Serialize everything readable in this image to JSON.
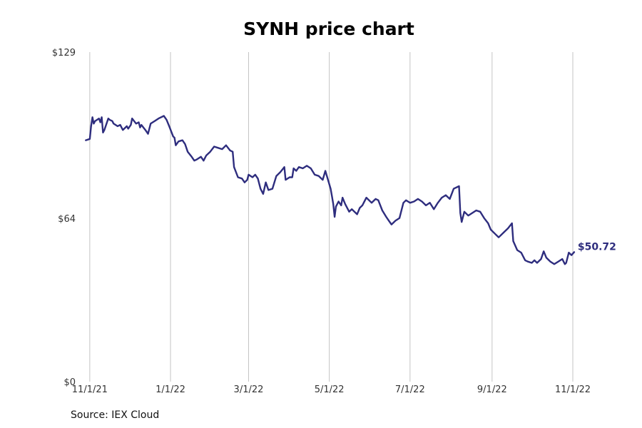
{
  "chart_data": {
    "type": "line",
    "title": "SYNH price chart",
    "xlabel": "",
    "ylabel": "",
    "ylim": [
      0,
      129
    ],
    "xlim": [
      "2021-10-31",
      "2022-11-01"
    ],
    "yticks": [
      {
        "value": 0,
        "label": "$0"
      },
      {
        "value": 64,
        "label": "$64"
      },
      {
        "value": 129,
        "label": "$129"
      }
    ],
    "xticks": [
      {
        "date": "2021-11-01",
        "label": "11/1/21"
      },
      {
        "date": "2022-01-01",
        "label": "1/1/22"
      },
      {
        "date": "2022-03-01",
        "label": "3/1/22"
      },
      {
        "date": "2022-05-01",
        "label": "5/1/22"
      },
      {
        "date": "2022-07-01",
        "label": "7/1/22"
      },
      {
        "date": "2022-09-01",
        "label": "9/1/22"
      },
      {
        "date": "2022-11-01",
        "label": "11/1/22"
      }
    ],
    "grid": {
      "vertical": true,
      "horizontal": false
    },
    "series": [
      {
        "color": "#2e2d7e",
        "end_label": "$50.72",
        "points": [
          [
            "2021-10-29",
            94.5
          ],
          [
            "2021-11-01",
            95.0
          ],
          [
            "2021-11-02",
            100.0
          ],
          [
            "2021-11-03",
            103.5
          ],
          [
            "2021-11-04",
            101.0
          ],
          [
            "2021-11-05",
            102.0
          ],
          [
            "2021-11-08",
            103.0
          ],
          [
            "2021-11-09",
            101.5
          ],
          [
            "2021-11-10",
            103.5
          ],
          [
            "2021-11-11",
            97.5
          ],
          [
            "2021-11-12",
            98.5
          ],
          [
            "2021-11-15",
            103.0
          ],
          [
            "2021-11-16",
            102.5
          ],
          [
            "2021-11-18",
            102.0
          ],
          [
            "2021-11-19",
            101.0
          ],
          [
            "2021-11-22",
            100.0
          ],
          [
            "2021-11-24",
            100.5
          ],
          [
            "2021-11-26",
            98.5
          ],
          [
            "2021-11-29",
            100.0
          ],
          [
            "2021-11-30",
            99.0
          ],
          [
            "2021-12-02",
            100.5
          ],
          [
            "2021-12-03",
            103.0
          ],
          [
            "2021-12-06",
            101.0
          ],
          [
            "2021-12-08",
            101.5
          ],
          [
            "2021-12-09",
            99.5
          ],
          [
            "2021-12-10",
            100.5
          ],
          [
            "2021-12-13",
            98.5
          ],
          [
            "2021-12-15",
            97.0
          ],
          [
            "2021-12-17",
            101.0
          ],
          [
            "2021-12-20",
            102.0
          ],
          [
            "2021-12-23",
            103.0
          ],
          [
            "2021-12-27",
            104.0
          ],
          [
            "2021-12-29",
            102.5
          ],
          [
            "2021-12-31",
            100.0
          ],
          [
            "2022-01-03",
            96.0
          ],
          [
            "2022-01-04",
            95.5
          ],
          [
            "2022-01-05",
            92.5
          ],
          [
            "2022-01-07",
            94.0
          ],
          [
            "2022-01-10",
            94.5
          ],
          [
            "2022-01-12",
            93.0
          ],
          [
            "2022-01-14",
            90.0
          ],
          [
            "2022-01-17",
            88.0
          ],
          [
            "2022-01-19",
            86.5
          ],
          [
            "2022-01-21",
            87.0
          ],
          [
            "2022-01-24",
            88.0
          ],
          [
            "2022-01-26",
            86.5
          ],
          [
            "2022-01-28",
            88.5
          ],
          [
            "2022-01-31",
            90.0
          ],
          [
            "2022-02-03",
            92.0
          ],
          [
            "2022-02-06",
            91.5
          ],
          [
            "2022-02-09",
            91.0
          ],
          [
            "2022-02-12",
            92.5
          ],
          [
            "2022-02-15",
            90.5
          ],
          [
            "2022-02-17",
            90.0
          ],
          [
            "2022-02-18",
            84.0
          ],
          [
            "2022-02-21",
            80.0
          ],
          [
            "2022-02-24",
            79.5
          ],
          [
            "2022-02-26",
            78.0
          ],
          [
            "2022-02-28",
            79.0
          ],
          [
            "2022-03-01",
            81.0
          ],
          [
            "2022-03-04",
            80.0
          ],
          [
            "2022-03-06",
            81.0
          ],
          [
            "2022-03-08",
            79.5
          ],
          [
            "2022-03-10",
            75.5
          ],
          [
            "2022-03-12",
            73.5
          ],
          [
            "2022-03-14",
            78.0
          ],
          [
            "2022-03-16",
            75.0
          ],
          [
            "2022-03-19",
            75.5
          ],
          [
            "2022-03-22",
            80.5
          ],
          [
            "2022-03-25",
            82.0
          ],
          [
            "2022-03-28",
            84.0
          ],
          [
            "2022-03-29",
            79.0
          ],
          [
            "2022-04-01",
            80.0
          ],
          [
            "2022-04-03",
            80.0
          ],
          [
            "2022-04-04",
            83.5
          ],
          [
            "2022-04-06",
            82.5
          ],
          [
            "2022-04-08",
            84.0
          ],
          [
            "2022-04-11",
            83.5
          ],
          [
            "2022-04-14",
            84.5
          ],
          [
            "2022-04-17",
            83.5
          ],
          [
            "2022-04-20",
            81.0
          ],
          [
            "2022-04-23",
            80.5
          ],
          [
            "2022-04-26",
            79.0
          ],
          [
            "2022-04-28",
            82.5
          ],
          [
            "2022-05-02",
            75.5
          ],
          [
            "2022-05-03",
            72.5
          ],
          [
            "2022-05-04",
            69.5
          ],
          [
            "2022-05-05",
            64.5
          ],
          [
            "2022-05-06",
            68.5
          ],
          [
            "2022-05-08",
            70.5
          ],
          [
            "2022-05-10",
            69.0
          ],
          [
            "2022-05-11",
            72.0
          ],
          [
            "2022-05-13",
            69.5
          ],
          [
            "2022-05-16",
            66.5
          ],
          [
            "2022-05-18",
            67.5
          ],
          [
            "2022-05-19",
            67.0
          ],
          [
            "2022-05-22",
            65.5
          ],
          [
            "2022-05-24",
            68.0
          ],
          [
            "2022-05-26",
            69.0
          ],
          [
            "2022-05-29",
            72.0
          ],
          [
            "2022-06-02",
            70.0
          ],
          [
            "2022-06-05",
            71.5
          ],
          [
            "2022-06-07",
            71.0
          ],
          [
            "2022-06-10",
            67.0
          ],
          [
            "2022-06-13",
            64.5
          ],
          [
            "2022-06-15",
            63.0
          ],
          [
            "2022-06-17",
            61.5
          ],
          [
            "2022-06-20",
            63.0
          ],
          [
            "2022-06-23",
            64.0
          ],
          [
            "2022-06-26",
            70.0
          ],
          [
            "2022-06-28",
            71.0
          ],
          [
            "2022-07-01",
            70.0
          ],
          [
            "2022-07-04",
            70.5
          ],
          [
            "2022-07-07",
            71.5
          ],
          [
            "2022-07-10",
            70.5
          ],
          [
            "2022-07-13",
            69.0
          ],
          [
            "2022-07-16",
            70.0
          ],
          [
            "2022-07-19",
            67.5
          ],
          [
            "2022-07-22",
            70.0
          ],
          [
            "2022-07-25",
            72.0
          ],
          [
            "2022-07-28",
            73.0
          ],
          [
            "2022-07-31",
            71.5
          ],
          [
            "2022-08-03",
            75.5
          ],
          [
            "2022-08-07",
            76.5
          ],
          [
            "2022-08-08",
            66.0
          ],
          [
            "2022-08-09",
            62.5
          ],
          [
            "2022-08-11",
            66.5
          ],
          [
            "2022-08-14",
            65.0
          ],
          [
            "2022-08-17",
            66.0
          ],
          [
            "2022-08-20",
            67.0
          ],
          [
            "2022-08-23",
            66.5
          ],
          [
            "2022-08-26",
            64.0
          ],
          [
            "2022-08-29",
            62.0
          ],
          [
            "2022-08-31",
            59.5
          ],
          [
            "2022-09-03",
            58.0
          ],
          [
            "2022-09-06",
            56.5
          ],
          [
            "2022-09-10",
            58.5
          ],
          [
            "2022-09-13",
            60.0
          ],
          [
            "2022-09-16",
            62.0
          ],
          [
            "2022-09-17",
            55.0
          ],
          [
            "2022-09-20",
            51.5
          ],
          [
            "2022-09-23",
            50.5
          ],
          [
            "2022-09-26",
            47.5
          ],
          [
            "2022-09-28",
            47.0
          ],
          [
            "2022-10-01",
            46.5
          ],
          [
            "2022-10-03",
            47.5
          ],
          [
            "2022-10-05",
            46.5
          ],
          [
            "2022-10-08",
            48.0
          ],
          [
            "2022-10-10",
            51.0
          ],
          [
            "2022-10-12",
            48.5
          ],
          [
            "2022-10-15",
            47.0
          ],
          [
            "2022-10-18",
            46.0
          ],
          [
            "2022-10-21",
            47.0
          ],
          [
            "2022-10-24",
            48.0
          ],
          [
            "2022-10-26",
            46.0
          ],
          [
            "2022-10-27",
            46.5
          ],
          [
            "2022-10-29",
            50.5
          ],
          [
            "2022-10-31",
            49.5
          ],
          [
            "2022-11-02",
            50.72
          ]
        ]
      }
    ]
  },
  "footer": {
    "source": "Source: IEX Cloud"
  }
}
